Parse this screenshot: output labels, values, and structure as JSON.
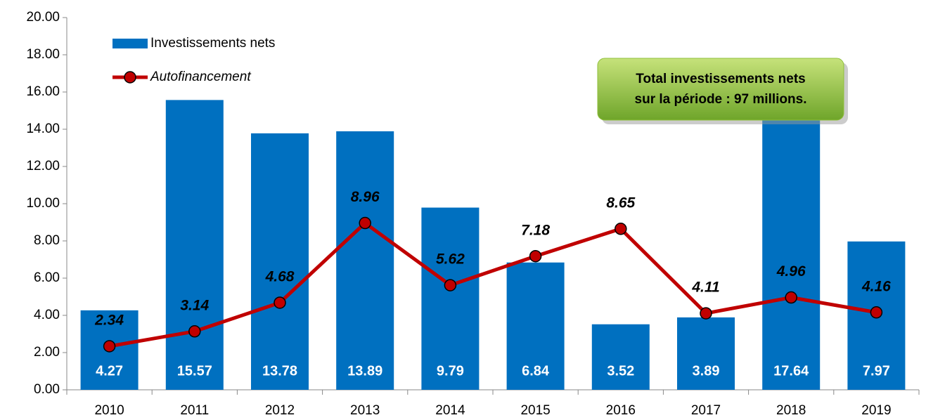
{
  "chart_data": {
    "type": "bar",
    "categories": [
      "2010",
      "2011",
      "2012",
      "2013",
      "2014",
      "2015",
      "2016",
      "2017",
      "2018",
      "2019"
    ],
    "series": [
      {
        "name": "Investissements nets",
        "type": "bar",
        "color": "#0070c0",
        "values": [
          4.27,
          15.57,
          13.78,
          13.89,
          9.79,
          6.84,
          3.52,
          3.89,
          17.64,
          7.97
        ]
      },
      {
        "name": "Autofinancement",
        "type": "line",
        "color": "#c00000",
        "values": [
          2.34,
          3.14,
          4.68,
          8.96,
          5.62,
          7.18,
          8.65,
          4.11,
          4.96,
          4.16
        ]
      }
    ],
    "ylim": [
      0,
      20
    ],
    "yticks": [
      {
        "value": 0,
        "label": "0.00"
      },
      {
        "value": 2,
        "label": "2.00"
      },
      {
        "value": 4,
        "label": "4.00"
      },
      {
        "value": 6,
        "label": "6.00"
      },
      {
        "value": 8,
        "label": "8.00"
      },
      {
        "value": 10,
        "label": "10.00"
      },
      {
        "value": 12,
        "label": "12.00"
      },
      {
        "value": 14,
        "label": "14.00"
      },
      {
        "value": 16,
        "label": "16.00"
      },
      {
        "value": 18,
        "label": "18.00"
      },
      {
        "value": 20,
        "label": "20.00"
      }
    ],
    "grid": false,
    "legend": "top-left",
    "annotation": [
      "Total investissements nets",
      "sur la période : 97 millions."
    ]
  }
}
